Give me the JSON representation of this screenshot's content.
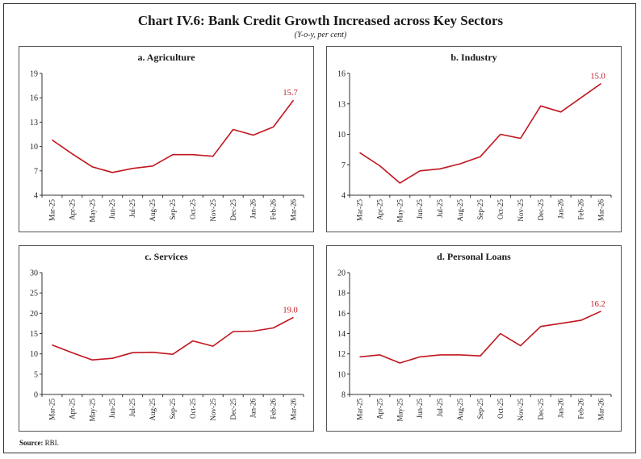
{
  "title": "Chart IV.6: Bank Credit Growth Increased across Key Sectors",
  "subtitle": "(Y-o-y, per cent)",
  "source_label": "Source:",
  "source_text": "RBI.",
  "line_color": "#c0161e",
  "chart_data": [
    {
      "type": "line",
      "title": "a. Agriculture",
      "categories": [
        "Mar-25",
        "Apr-25",
        "May-25",
        "Jun-25",
        "Jul-25",
        "Aug-25",
        "Sep-25",
        "Oct-25",
        "Nov-25",
        "Dec-25",
        "Jan-26",
        "Feb-26",
        "Mar-26"
      ],
      "values": [
        10.8,
        9.1,
        7.5,
        6.8,
        7.3,
        7.6,
        9.0,
        9.0,
        8.8,
        12.1,
        11.4,
        12.4,
        15.7
      ],
      "ylim": [
        4,
        19
      ],
      "yticks": [
        4,
        7,
        10,
        13,
        16,
        19
      ],
      "end_label": "15.7"
    },
    {
      "type": "line",
      "title": "b. Industry",
      "categories": [
        "Mar-25",
        "Apr-25",
        "May-25",
        "Jun-25",
        "Jul-25",
        "Aug-25",
        "Sep-25",
        "Oct-25",
        "Nov-25",
        "Dec-25",
        "Jan-26",
        "Feb-26",
        "Mar-26"
      ],
      "values": [
        8.2,
        6.9,
        5.2,
        6.4,
        6.6,
        7.1,
        7.8,
        10.0,
        9.6,
        12.8,
        12.2,
        13.6,
        15.0
      ],
      "ylim": [
        4,
        16
      ],
      "yticks": [
        4,
        7,
        10,
        13,
        16
      ],
      "end_label": "15.0"
    },
    {
      "type": "line",
      "title": "c. Services",
      "categories": [
        "Mar-25",
        "Apr-25",
        "May-25",
        "Jun-25",
        "Jul-25",
        "Aug-25",
        "Sep-25",
        "Oct-25",
        "Nov-25",
        "Dec-25",
        "Jan-26",
        "Feb-26",
        "Mar-26"
      ],
      "values": [
        12.2,
        10.3,
        8.5,
        8.9,
        10.3,
        10.4,
        9.9,
        13.2,
        11.9,
        15.5,
        15.6,
        16.4,
        19.0
      ],
      "ylim": [
        0,
        30
      ],
      "yticks": [
        0,
        5,
        10,
        15,
        20,
        25,
        30
      ],
      "end_label": "19.0"
    },
    {
      "type": "line",
      "title": "d. Personal Loans",
      "categories": [
        "Mar-25",
        "Apr-25",
        "May-25",
        "Jun-25",
        "Jul-25",
        "Aug-25",
        "Sep-25",
        "Oct-25",
        "Nov-25",
        "Dec-25",
        "Jan-26",
        "Feb-26",
        "Mar-26"
      ],
      "values": [
        11.7,
        11.9,
        11.1,
        11.7,
        11.9,
        11.9,
        11.8,
        14.0,
        12.8,
        14.7,
        15.0,
        15.3,
        16.2
      ],
      "ylim": [
        8,
        20
      ],
      "yticks": [
        8,
        10,
        12,
        14,
        16,
        18,
        20
      ],
      "end_label": "16.2"
    }
  ]
}
